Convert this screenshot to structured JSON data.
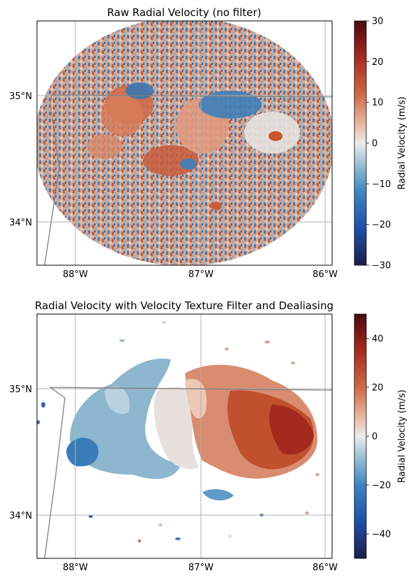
{
  "chart_data": [
    {
      "type": "heatmap",
      "title": "Raw Radial Velocity (no filter)",
      "x_ticks": [
        "88°W",
        "87°W",
        "86°W"
      ],
      "x_tick_values": [
        -88,
        -87,
        -86
      ],
      "y_ticks": [
        "35°N",
        "34°N"
      ],
      "y_tick_values": [
        35,
        34
      ],
      "xlim": [
        -88.3,
        -85.95
      ],
      "ylim": [
        33.65,
        35.6
      ],
      "grid": true,
      "colorbar": {
        "label": "Radial Velocity (m/s)",
        "range": [
          -30,
          30
        ],
        "ticks": [
          "30",
          "20",
          "10",
          "0",
          "−10",
          "−20",
          "−30"
        ],
        "tick_values": [
          30,
          20,
          10,
          0,
          -10,
          -20,
          -30
        ]
      },
      "colormap": [
        "#1b1f4a",
        "#1f4fa8",
        "#3d86c0",
        "#9fc3d8",
        "#ececec",
        "#e8b6a0",
        "#cd6a48",
        "#a92a1e",
        "#4a0a0e"
      ]
    },
    {
      "type": "heatmap",
      "title": "Radial Velocity with Velocity Texture Filter and Dealiasing",
      "x_ticks": [
        "88°W",
        "87°W",
        "86°W"
      ],
      "x_tick_values": [
        -88,
        -87,
        -86
      ],
      "y_ticks": [
        "35°N",
        "34°N"
      ],
      "y_tick_values": [
        35,
        34
      ],
      "xlim": [
        -88.3,
        -85.95
      ],
      "ylim": [
        33.65,
        35.6
      ],
      "grid": true,
      "colorbar": {
        "label": "Radial Velocity (m/s)",
        "range": [
          -50,
          50
        ],
        "ticks": [
          "40",
          "20",
          "0",
          "−20",
          "−40"
        ],
        "tick_values": [
          40,
          20,
          0,
          -20,
          -40
        ]
      },
      "colormap": [
        "#1b1f4a",
        "#1f4fa8",
        "#3d86c0",
        "#9fc3d8",
        "#ececec",
        "#e8b6a0",
        "#cd6a48",
        "#a92a1e",
        "#4a0a0e"
      ]
    }
  ]
}
